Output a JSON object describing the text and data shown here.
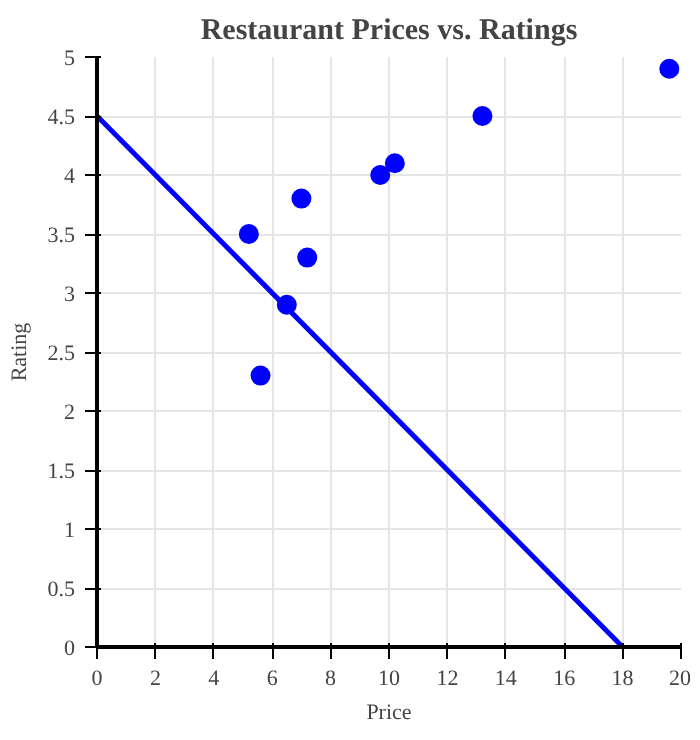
{
  "chart_data": {
    "type": "scatter",
    "title": "Restaurant Prices vs. Ratings",
    "xlabel": "Price",
    "ylabel": "Rating",
    "xlim": [
      0,
      20
    ],
    "ylim": [
      0,
      5
    ],
    "xticks": [
      0,
      2,
      4,
      6,
      8,
      10,
      12,
      14,
      16,
      18,
      20
    ],
    "yticks": [
      0,
      0.5,
      1,
      1.5,
      2,
      2.5,
      3,
      3.5,
      4,
      4.5,
      5
    ],
    "grid": true,
    "series": [
      {
        "marker": "circle",
        "color": "#0000ff",
        "x": [
          5.2,
          7.0,
          7.2,
          6.5,
          9.7,
          10.2,
          13.2,
          19.6,
          5.6
        ],
        "values": [
          3.5,
          3.8,
          3.3,
          2.9,
          4.0,
          4.1,
          4.5,
          4.9,
          2.3
        ]
      },
      {
        "type": "line",
        "color": "#0000ff",
        "x": [
          0,
          18
        ],
        "values": [
          4.5,
          0
        ]
      }
    ]
  }
}
